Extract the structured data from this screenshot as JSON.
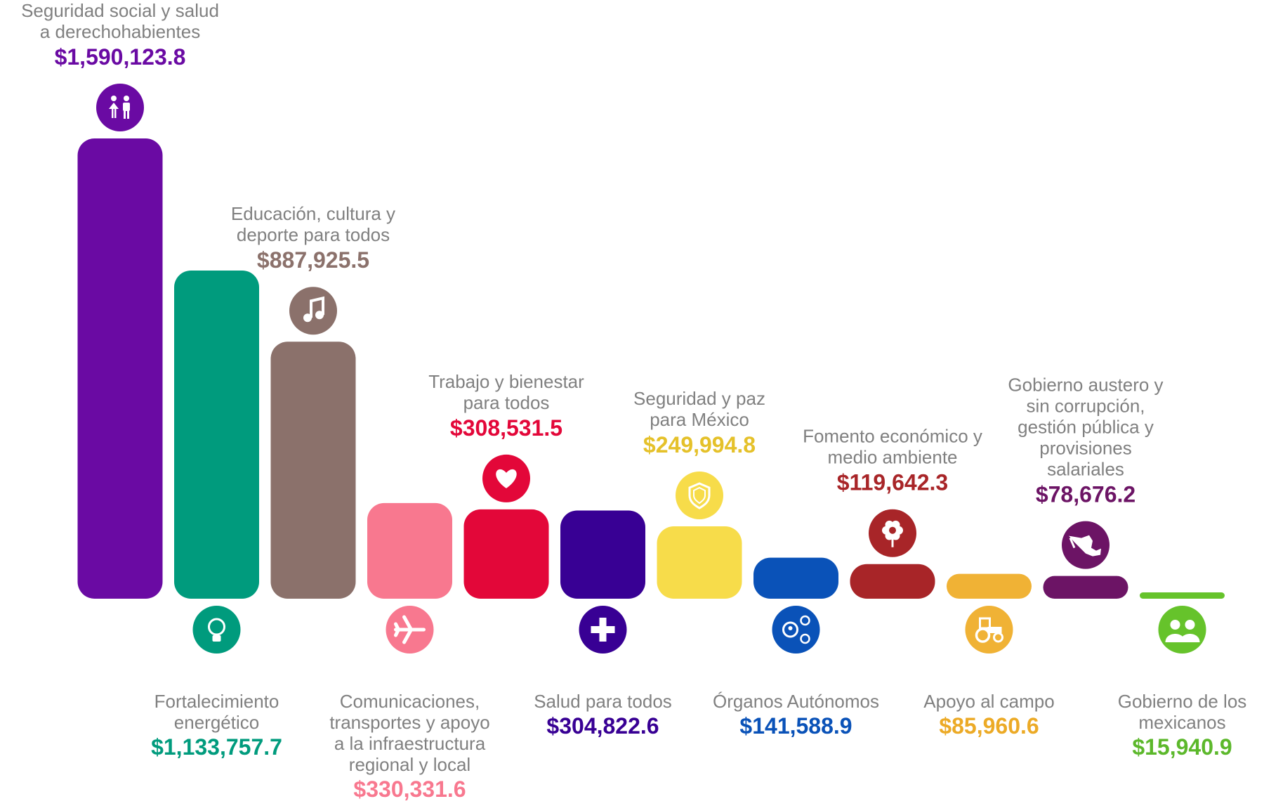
{
  "chart_data": {
    "type": "bar",
    "categories": [
      "Seguridad social y salud a derechohabientes",
      "Fortalecimiento energético",
      "Educación, cultura y deporte para todos",
      "Comunicaciones, transportes y apoyo a la infraestructura regional y local",
      "Trabajo y bienestar para todos",
      "Salud para todos",
      "Seguridad y paz para México",
      "Órganos Autónomos",
      "Fomento económico y medio ambiente",
      "Apoyo al campo",
      "Gobierno austero y sin corrupción, gestión pública y provisiones salariales",
      "Gobierno de los mexicanos"
    ],
    "values": [
      1590123.8,
      1133757.7,
      887925.5,
      330331.6,
      308531.5,
      304822.6,
      249994.8,
      141588.9,
      119642.3,
      85960.6,
      78676.2,
      15940.9
    ],
    "bars": [
      {
        "label_lines": [
          "Seguridad social y salud",
          "a derechohabientes"
        ],
        "value_label": "$1,590,123.8",
        "color": "#6a0aa3",
        "icon": "people-icon",
        "label_position": "above"
      },
      {
        "label_lines": [
          "Fortalecimiento",
          "energético"
        ],
        "value_label": "$1,133,757.7",
        "color": "#009b7d",
        "icon": "lightbulb-icon",
        "label_position": "below"
      },
      {
        "label_lines": [
          "Educación, cultura y",
          "deporte para todos"
        ],
        "value_label": "$887,925.5",
        "color": "#8b716b",
        "icon": "music-note-icon",
        "label_position": "above"
      },
      {
        "label_lines": [
          "Comunicaciones,",
          "transportes y apoyo",
          "a la infraestructura",
          "regional y local"
        ],
        "value_label": "$330,331.6",
        "color": "#f8788f",
        "icon": "airplane-icon",
        "label_position": "below"
      },
      {
        "label_lines": [
          "Trabajo y bienestar",
          "para todos"
        ],
        "value_label": "$308,531.5",
        "color": "#e30739",
        "icon": "heart-icon",
        "label_position": "above"
      },
      {
        "label_lines": [
          "Salud para todos"
        ],
        "value_label": "$304,822.6",
        "color": "#380094",
        "icon": "cross-icon",
        "label_position": "below"
      },
      {
        "label_lines": [
          "Seguridad y paz",
          "para México"
        ],
        "value_label": "$249,994.8",
        "color": "#f7dc4a",
        "value_color": "#e5c12a",
        "icon": "shield-icon",
        "label_position": "above"
      },
      {
        "label_lines": [
          "Órganos Autónomos"
        ],
        "value_label": "$141,588.9",
        "color": "#0a52b8",
        "icon": "people-network-icon",
        "label_position": "below"
      },
      {
        "label_lines": [
          "Fomento económico y",
          "medio ambiente"
        ],
        "value_label": "$119,642.3",
        "color": "#a82528",
        "icon": "flower-icon",
        "label_position": "above"
      },
      {
        "label_lines": [
          "Apoyo al campo"
        ],
        "value_label": "$85,960.6",
        "color": "#f0b235",
        "value_color": "#ecaa26",
        "icon": "tractor-icon",
        "label_position": "below"
      },
      {
        "label_lines": [
          "Gobierno austero y",
          "sin corrupción,",
          "gestión pública y",
          "provisiones",
          "salariales"
        ],
        "value_label": "$78,676.2",
        "color": "#6c1465",
        "icon": "mexico-map-icon",
        "label_position": "above"
      },
      {
        "label_lines": [
          "Gobierno de los",
          "mexicanos"
        ],
        "value_label": "$15,940.9",
        "color": "#66c32b",
        "value_color": "#5cb82b",
        "icon": "family-icon",
        "label_position": "below"
      }
    ]
  }
}
